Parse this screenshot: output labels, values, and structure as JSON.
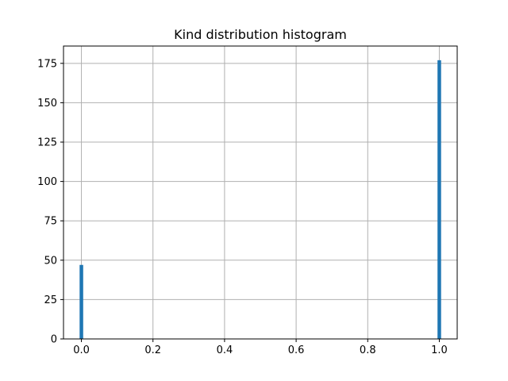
{
  "chart_data": {
    "type": "bar",
    "title": "Kind distribution histogram",
    "xlabel": "",
    "ylabel": "",
    "x": [
      0.0,
      1.0
    ],
    "values": [
      47,
      177
    ],
    "bin_width": 0.01,
    "xlim": [
      -0.05,
      1.05
    ],
    "ylim": [
      0,
      186
    ],
    "xticks": [
      0.0,
      0.2,
      0.4,
      0.6,
      0.8,
      1.0
    ],
    "xtick_labels": [
      "0.0",
      "0.2",
      "0.4",
      "0.6",
      "0.8",
      "1.0"
    ],
    "yticks": [
      0,
      25,
      50,
      75,
      100,
      125,
      150,
      175
    ],
    "ytick_labels": [
      "0",
      "25",
      "50",
      "75",
      "100",
      "125",
      "150",
      "175"
    ],
    "grid": true,
    "colors": {
      "bar": "#1f77b4",
      "grid": "#b0b0b0",
      "axis": "#000000"
    }
  }
}
